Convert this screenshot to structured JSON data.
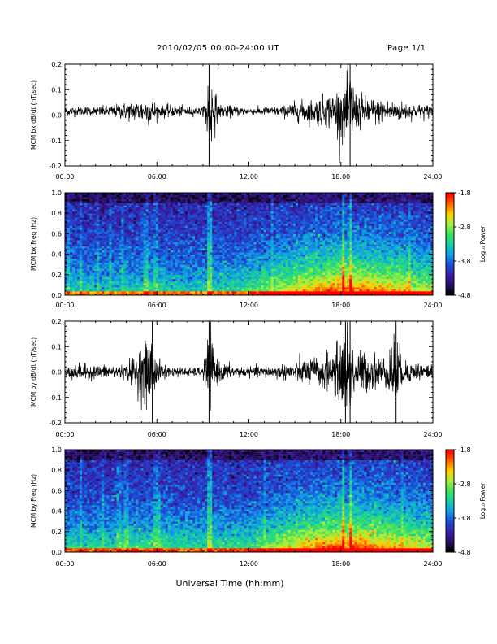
{
  "header": {
    "title": "2010/02/05  00:00-24:00 UT",
    "page": "Page 1/1"
  },
  "footer": {
    "xlabel": "Universal Time (hh:mm)"
  },
  "colors": {
    "trace": "#000000",
    "colormap": [
      "#000000",
      "#2b0f66",
      "#3a1fa8",
      "#1a4fd8",
      "#10a0e8",
      "#18d0a0",
      "#40e060",
      "#a8f040",
      "#ffd000",
      "#ff6000",
      "#ff0000"
    ]
  },
  "chart_data": [
    {
      "type": "line",
      "ylabel": "MCM bx dB/dt (nT/sec)",
      "xlim": [
        "00:00",
        "24:00"
      ],
      "ylim": [
        -0.2,
        0.2
      ],
      "x_ticks": [
        "00:00",
        "06:00",
        "12:00",
        "18:00",
        "24:00"
      ],
      "y_ticks": [
        "-0.2",
        "-0.1",
        "0.0",
        "0.1",
        "0.2"
      ],
      "series": [
        {
          "x_hours": [
            0,
            2,
            3,
            5.7,
            6,
            9,
            9.4,
            10,
            12,
            14,
            15,
            16,
            17,
            17.5,
            18,
            18.3,
            18.6,
            19,
            20,
            21,
            22,
            23,
            24
          ],
          "amplitude_nT_s": [
            0.02,
            0.02,
            0.025,
            0.06,
            0.03,
            0.015,
            0.2,
            0.03,
            0.015,
            0.02,
            0.04,
            0.05,
            0.07,
            0.08,
            0.12,
            0.14,
            0.2,
            0.08,
            0.06,
            0.05,
            0.04,
            0.03,
            0.03
          ]
        }
      ],
      "spikes_hours": [
        9.4,
        18.6
      ],
      "baseline": 0.015
    },
    {
      "type": "heatmap",
      "ylabel": "MCM bx Freq (Hz)",
      "xlim": [
        "00:00",
        "24:00"
      ],
      "ylim": [
        0,
        1
      ],
      "x_ticks": [
        "00:00",
        "06:00",
        "12:00",
        "18:00",
        "24:00"
      ],
      "y_ticks": [
        "0.0",
        "0.2",
        "0.4",
        "0.6",
        "0.8",
        "1.0"
      ],
      "colorbar": {
        "label": "Log₁₀ Power",
        "ticks": [
          "-1.8",
          "-2.8",
          "-3.8",
          "-4.8"
        ],
        "range": [
          -4.8,
          -1.8
        ]
      },
      "activity_hours": [
        0,
        3,
        6,
        9,
        12,
        14,
        16,
        18,
        20,
        22,
        24
      ],
      "activity_level": [
        0.35,
        0.35,
        0.4,
        0.35,
        0.45,
        0.6,
        0.75,
        0.85,
        0.8,
        0.7,
        0.6
      ],
      "bright_lines_hours": [
        9.4,
        18.2,
        18.6
      ],
      "faint_lines_hours": [
        0.3,
        1.0,
        2.1,
        3.0,
        3.7,
        5.3,
        5.9,
        13.5,
        22.5
      ]
    },
    {
      "type": "line",
      "ylabel": "MCM by dB/dt (nT/sec)",
      "xlim": [
        "00:00",
        "24:00"
      ],
      "ylim": [
        -0.2,
        0.2
      ],
      "x_ticks": [
        "00:00",
        "06:00",
        "12:00",
        "18:00",
        "24:00"
      ],
      "y_ticks": [
        "-0.2",
        "-0.1",
        "0.0",
        "0.1",
        "0.2"
      ],
      "series": [
        {
          "x_hours": [
            0,
            2,
            4,
            5.6,
            6,
            7,
            9,
            9.4,
            10,
            12,
            14,
            15,
            16,
            17,
            17.5,
            18,
            18.2,
            18.6,
            19,
            20,
            21,
            21.5,
            22,
            23,
            24
          ],
          "amplitude_nT_s": [
            0.04,
            0.03,
            0.03,
            0.16,
            0.05,
            0.02,
            0.02,
            0.18,
            0.04,
            0.02,
            0.03,
            0.04,
            0.06,
            0.08,
            0.09,
            0.14,
            0.2,
            0.2,
            0.09,
            0.08,
            0.07,
            0.2,
            0.05,
            0.04,
            0.04
          ]
        }
      ],
      "spikes_hours": [
        5.7,
        9.4,
        18.3,
        18.6,
        21.6
      ],
      "baseline": 0.0
    },
    {
      "type": "heatmap",
      "ylabel": "MCM by Freq (Hz)",
      "xlim": [
        "00:00",
        "24:00"
      ],
      "ylim": [
        0,
        1
      ],
      "x_ticks": [
        "00:00",
        "06:00",
        "12:00",
        "18:00",
        "24:00"
      ],
      "y_ticks": [
        "0.0",
        "0.2",
        "0.4",
        "0.6",
        "0.8",
        "1.0"
      ],
      "colorbar": {
        "label": "Log₁₀ Power",
        "ticks": [
          "-1.8",
          "-2.8",
          "-3.8",
          "-4.8"
        ],
        "range": [
          -4.8,
          -1.8
        ]
      },
      "activity_hours": [
        0,
        3,
        6,
        9,
        12,
        14,
        16,
        18,
        20,
        22,
        24
      ],
      "activity_level": [
        0.4,
        0.4,
        0.45,
        0.4,
        0.45,
        0.6,
        0.78,
        0.85,
        0.82,
        0.7,
        0.62
      ],
      "bright_lines_hours": [
        9.4,
        18.2,
        18.6
      ],
      "faint_lines_hours": [
        1.0,
        2.5,
        3.5,
        4.0,
        5.9,
        6.2,
        13.0,
        22.0
      ]
    }
  ]
}
